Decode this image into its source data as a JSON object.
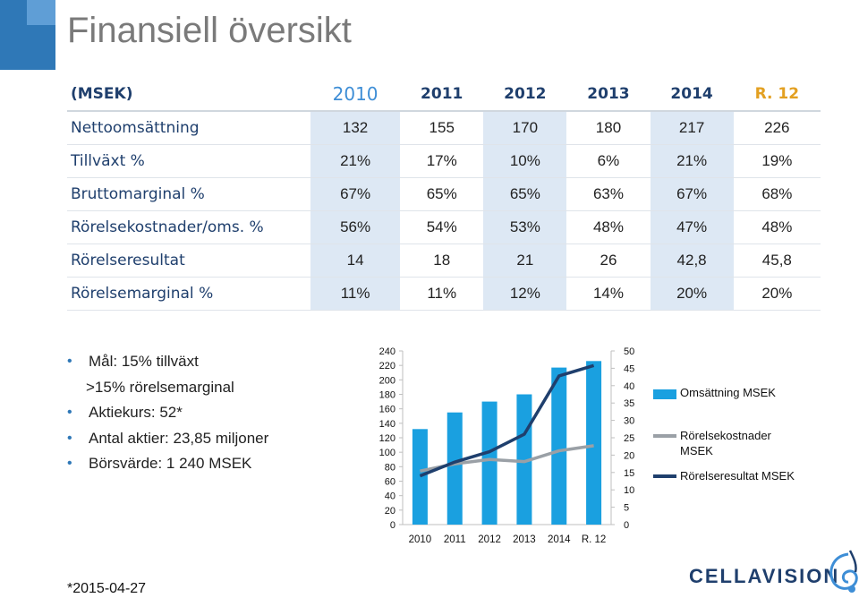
{
  "title": "Finansiell översikt",
  "table": {
    "unit_header": "(MSEK)",
    "columns": [
      "2010",
      "2011",
      "2012",
      "2013",
      "2014",
      "R. 12"
    ],
    "rows": [
      {
        "label": "Nettoomsättning",
        "values": [
          "132",
          "155",
          "170",
          "180",
          "217",
          "226"
        ]
      },
      {
        "label": "Tillväxt %",
        "values": [
          "21%",
          "17%",
          "10%",
          "6%",
          "21%",
          "19%"
        ]
      },
      {
        "label": "Bruttomarginal %",
        "values": [
          "67%",
          "65%",
          "65%",
          "63%",
          "67%",
          "68%"
        ]
      },
      {
        "label": "Rörelsekostnader/oms. %",
        "values": [
          "56%",
          "54%",
          "53%",
          "48%",
          "47%",
          "48%"
        ]
      },
      {
        "label": "Rörelseresultat",
        "values": [
          "14",
          "18",
          "21",
          "26",
          "42,8",
          "45,8"
        ]
      },
      {
        "label": "Rörelsemarginal %",
        "values": [
          "11%",
          "11%",
          "12%",
          "14%",
          "20%",
          "20%"
        ]
      }
    ]
  },
  "bullets": [
    {
      "text": "Mål: 15% tillväxt",
      "dot": true
    },
    {
      "text": ">15% rörelsemarginal",
      "dot": false
    },
    {
      "text": "Aktiekurs:  52*",
      "dot": true
    },
    {
      "text": "Antal aktier: 23,85 miljoner",
      "dot": true
    },
    {
      "text": "Börsvärde: 1 240 MSEK",
      "dot": true
    }
  ],
  "footnote": "*2015-04-27",
  "logo": {
    "text": "CELLAVISION"
  },
  "colors": {
    "bar": "#1aa0e0",
    "line_gray": "#9aa0a6",
    "line_navy": "#1f3f6d",
    "accent": "#2f78b7"
  },
  "chart_data": {
    "type": "bar",
    "categories": [
      "2010",
      "2011",
      "2012",
      "2013",
      "2014",
      "R. 12"
    ],
    "y_left": {
      "ticks": [
        "240",
        "220",
        "200",
        "180",
        "160",
        "140",
        "120",
        "100",
        "80",
        "60",
        "40",
        "20",
        "0"
      ],
      "ylim": [
        0,
        240
      ]
    },
    "y_right": {
      "ticks": [
        "50",
        "45",
        "40",
        "35",
        "30",
        "25",
        "20",
        "15",
        "10",
        "5",
        "0"
      ],
      "ylim": [
        0,
        50
      ]
    },
    "series": [
      {
        "name": "Omsättning MSEK",
        "type": "bar",
        "axis": "left",
        "values": [
          132,
          155,
          170,
          180,
          217,
          226
        ]
      },
      {
        "name": "Rörelsekostnader MSEK",
        "type": "line",
        "axis": "left",
        "values": [
          74,
          84,
          90,
          87,
          102,
          109
        ]
      },
      {
        "name": "Rörelseresultat MSEK",
        "type": "line",
        "axis": "right",
        "values": [
          14,
          18,
          21,
          26,
          42.8,
          45.8
        ]
      }
    ],
    "legend": {
      "placement": "right",
      "items": [
        "Omsättning MSEK",
        "Rörelsekostnader MSEK",
        "Rörelseresultat MSEK"
      ]
    }
  }
}
